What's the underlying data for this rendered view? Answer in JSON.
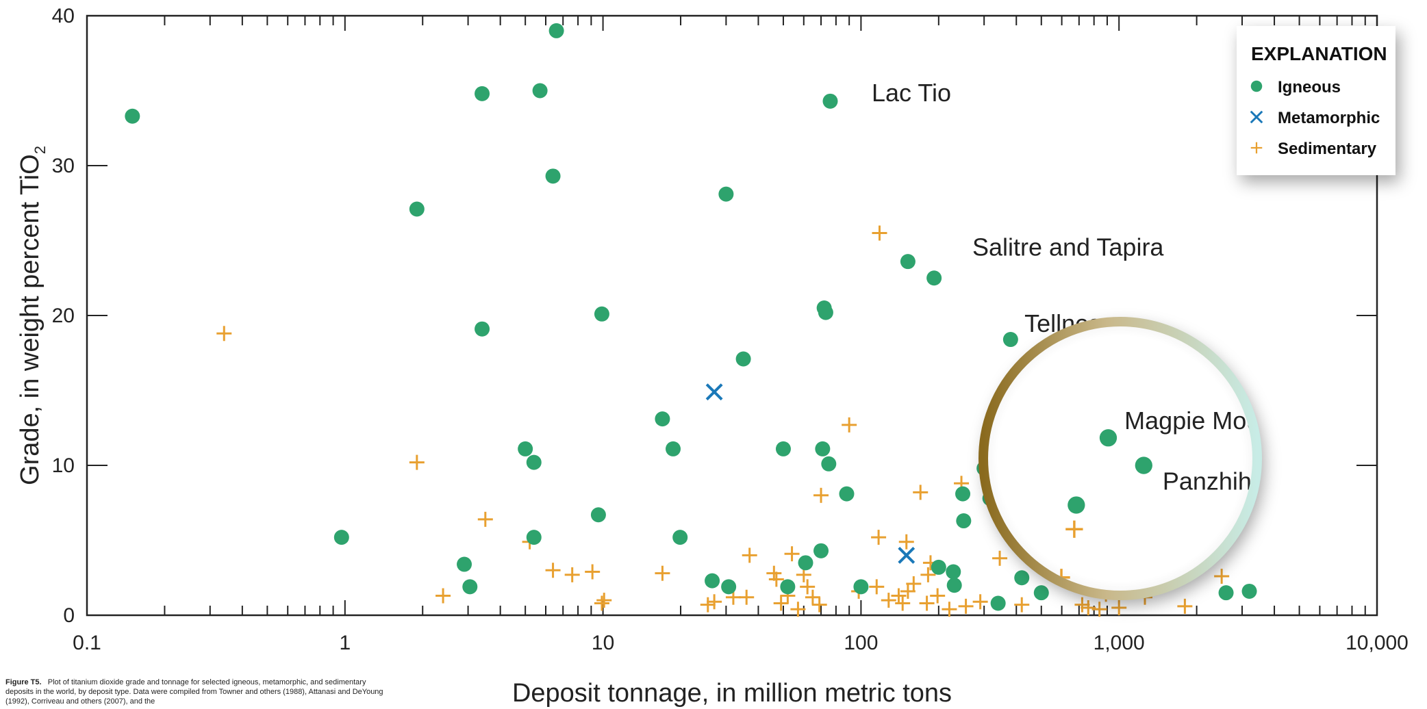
{
  "caption": {
    "label": "Figure T5.",
    "text": "Plot of titanium dioxide grade and tonnage for selected igneous, metamorphic, and sedimentary deposits in the world, by deposit type. Data were compiled from Towner and others (1988), Attanasi and DeYoung (1992), Corriveau and others (2007), and the"
  },
  "colors": {
    "igneous": "#2ea36d",
    "metamorphic": "#1a78b8",
    "sedimentary": "#e8a030",
    "axis": "#222222"
  },
  "chart_data": {
    "type": "scatter",
    "xscale": "log",
    "xlim": [
      0.1,
      10000
    ],
    "ylim": [
      0,
      40
    ],
    "xlabel": "Deposit tonnage, in million metric tons",
    "ylabel_main": "Grade, in weight percent TiO",
    "ylabel_sub": "2",
    "x_ticks": [
      0.1,
      1,
      10,
      100,
      1000,
      10000
    ],
    "x_tick_labels": [
      "0.1",
      "1",
      "10",
      "100",
      "1,000",
      "10,000"
    ],
    "y_ticks": [
      0,
      10,
      20,
      30,
      40
    ],
    "y_tick_labels": [
      "0",
      "10",
      "20",
      "30",
      "40"
    ],
    "legend": {
      "title": "EXPLANATION",
      "placement": "top-right"
    },
    "series": [
      {
        "name": "Igneous",
        "marker": "circle",
        "color": "#2ea36d",
        "points": [
          [
            0.15,
            33.3
          ],
          [
            3.4,
            34.8
          ],
          [
            5.7,
            35.0
          ],
          [
            6.6,
            39.0
          ],
          [
            6.4,
            29.3
          ],
          [
            1.9,
            27.1
          ],
          [
            3.4,
            19.1
          ],
          [
            9.9,
            20.1
          ],
          [
            0.97,
            5.2
          ],
          [
            2.9,
            3.4
          ],
          [
            3.05,
            1.9
          ],
          [
            5.0,
            11.1
          ],
          [
            5.4,
            10.2
          ],
          [
            5.4,
            5.2
          ],
          [
            9.6,
            6.7
          ],
          [
            17.0,
            13.1
          ],
          [
            18.7,
            11.1
          ],
          [
            19.9,
            5.2
          ],
          [
            26.5,
            2.3
          ],
          [
            30.7,
            1.9
          ],
          [
            30.0,
            28.1
          ],
          [
            35.0,
            17.1
          ],
          [
            50.0,
            11.1
          ],
          [
            52.0,
            1.9
          ],
          [
            61.0,
            3.5
          ],
          [
            70.0,
            4.3
          ],
          [
            72.0,
            20.5
          ],
          [
            73.0,
            20.2
          ],
          [
            71.0,
            11.1
          ],
          [
            75.0,
            10.1
          ],
          [
            76.0,
            34.3
          ],
          [
            88.0,
            8.1
          ],
          [
            100.0,
            1.9
          ],
          [
            152.0,
            23.6
          ],
          [
            192.0,
            22.5
          ],
          [
            200.0,
            3.2
          ],
          [
            228.0,
            2.9
          ],
          [
            230.0,
            2.0
          ],
          [
            248.0,
            8.1
          ],
          [
            250.0,
            6.3
          ],
          [
            300.0,
            9.8
          ],
          [
            316.0,
            7.8
          ],
          [
            340.0,
            0.8
          ],
          [
            380.0,
            18.4
          ],
          [
            420.0,
            2.5
          ],
          [
            500.0,
            1.5
          ],
          [
            640.0,
            6.8
          ],
          [
            820.0,
            10.7
          ],
          [
            1080.0,
            9.1
          ],
          [
            2600.0,
            1.5
          ],
          [
            3200.0,
            1.6
          ]
        ]
      },
      {
        "name": "Metamorphic",
        "marker": "x",
        "color": "#1a78b8",
        "points": [
          [
            27.0,
            14.9
          ],
          [
            150.0,
            4.0
          ]
        ]
      },
      {
        "name": "Sedimentary",
        "marker": "plus",
        "color": "#e8a030",
        "points": [
          [
            0.34,
            18.8
          ],
          [
            1.9,
            10.2
          ],
          [
            3.5,
            6.4
          ],
          [
            5.2,
            4.9
          ],
          [
            2.4,
            1.3
          ],
          [
            6.4,
            3.0
          ],
          [
            7.6,
            2.7
          ],
          [
            9.1,
            2.9
          ],
          [
            10.1,
            1.0
          ],
          [
            9.9,
            0.8
          ],
          [
            17.0,
            2.8
          ],
          [
            25.5,
            0.7
          ],
          [
            27.0,
            0.9
          ],
          [
            32.0,
            1.2
          ],
          [
            36.0,
            1.2
          ],
          [
            37.0,
            4.0
          ],
          [
            46.0,
            2.8
          ],
          [
            47.0,
            2.4
          ],
          [
            49.0,
            0.8
          ],
          [
            52.0,
            1.3
          ],
          [
            54.0,
            4.1
          ],
          [
            57.0,
            0.4
          ],
          [
            60.0,
            2.7
          ],
          [
            62.0,
            1.9
          ],
          [
            65.0,
            1.2
          ],
          [
            69.0,
            0.7
          ],
          [
            70.0,
            8.0
          ],
          [
            90.0,
            12.7
          ],
          [
            98.0,
            1.6
          ],
          [
            115.0,
            1.9
          ],
          [
            117.0,
            5.2
          ],
          [
            118.0,
            25.5
          ],
          [
            128.0,
            1.0
          ],
          [
            140.0,
            1.3
          ],
          [
            145.0,
            0.8
          ],
          [
            150.0,
            4.9
          ],
          [
            152.0,
            1.6
          ],
          [
            160.0,
            2.1
          ],
          [
            170.0,
            8.2
          ],
          [
            180.0,
            0.8
          ],
          [
            182.0,
            2.7
          ],
          [
            186.0,
            3.5
          ],
          [
            198.0,
            1.3
          ],
          [
            220.0,
            0.4
          ],
          [
            245.0,
            8.8
          ],
          [
            255.0,
            0.6
          ],
          [
            290.0,
            0.9
          ],
          [
            345.0,
            3.8
          ],
          [
            420.0,
            0.7
          ],
          [
            570.0,
            2.6
          ],
          [
            630.0,
            5.4
          ],
          [
            720.0,
            0.7
          ],
          [
            760.0,
            0.5
          ],
          [
            840.0,
            0.4
          ],
          [
            890.0,
            1.4
          ],
          [
            1000.0,
            0.5
          ],
          [
            1260.0,
            1.2
          ],
          [
            1800.0,
            0.6
          ],
          [
            2500.0,
            2.6
          ]
        ]
      }
    ],
    "annotations": [
      {
        "text": "Lac Tio",
        "x": 110,
        "y": 34.3
      },
      {
        "text": "Salitre and Tapira",
        "x": 270,
        "y": 24.0
      },
      {
        "text": "Tellnes",
        "x": 430,
        "y": 18.9
      },
      {
        "text": "Magpie Mountain",
        "x": 930,
        "y": 11.2
      },
      {
        "text": "Panzhihua",
        "x": 1250,
        "y": 7.7
      }
    ]
  }
}
